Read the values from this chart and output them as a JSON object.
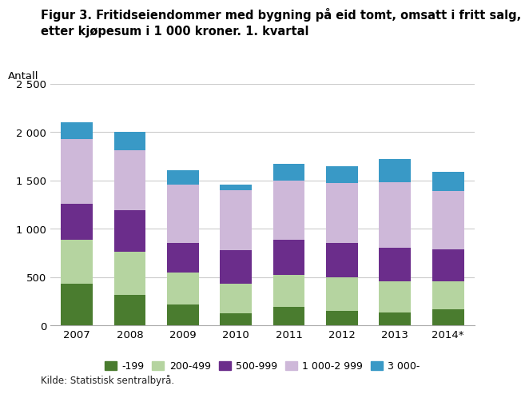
{
  "title_line1": "Figur 3. Fritidseiendommer med bygning på eid tomt, omsatt i fritt salg,",
  "title_line2": "etter kjøpesum i 1 000 kroner. 1. kvartal",
  "ylabel": "Antall",
  "source": "Kilde: Statistisk sentralbyrå.",
  "years": [
    "2007",
    "2008",
    "2009",
    "2010",
    "2011",
    "2012",
    "2013",
    "2014*"
  ],
  "segments": [
    {
      "label": "-199",
      "color": "#4a7c2f",
      "values": [
        430,
        320,
        215,
        125,
        195,
        155,
        135,
        170
      ]
    },
    {
      "label": "200-499",
      "color": "#b5d4a0",
      "values": [
        460,
        440,
        330,
        310,
        325,
        340,
        325,
        290
      ]
    },
    {
      "label": "500-999",
      "color": "#6b2d8b",
      "values": [
        370,
        430,
        305,
        345,
        370,
        360,
        345,
        330
      ]
    },
    {
      "label": "1 000-2 999",
      "color": "#ceb8d9",
      "values": [
        670,
        620,
        610,
        620,
        610,
        620,
        680,
        600
      ]
    },
    {
      "label": "3 000-",
      "color": "#3999c6",
      "values": [
        175,
        195,
        145,
        55,
        170,
        175,
        235,
        200
      ]
    }
  ],
  "ylim": [
    0,
    2500
  ],
  "yticks": [
    0,
    500,
    1000,
    1500,
    2000,
    2500
  ],
  "background_color": "#ffffff",
  "grid_color": "#cccccc",
  "title_fontsize": 10.5,
  "axis_fontsize": 9.5,
  "legend_fontsize": 9
}
